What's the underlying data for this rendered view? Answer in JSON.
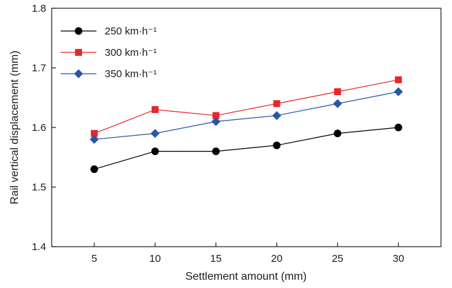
{
  "chart_data": {
    "type": "line",
    "title": "",
    "xlabel": "Settlement amount (mm)",
    "ylabel": "Rail vertical displacement (mm)",
    "x": [
      5,
      10,
      15,
      20,
      25,
      30
    ],
    "xlim": [
      1.5,
      33.5
    ],
    "ylim": [
      1.4,
      1.8
    ],
    "xticks": [
      5,
      10,
      15,
      20,
      25,
      30
    ],
    "yticks": [
      1.4,
      1.5,
      1.6,
      1.7,
      1.8
    ],
    "ytick_labels": [
      "1.4",
      "1.5",
      "1.6",
      "1.7",
      "1.8"
    ],
    "grid": false,
    "legend_position": "top-left",
    "series": [
      {
        "name": "250 km·h⁻¹",
        "color": "#000000",
        "marker": "circle",
        "values": [
          1.53,
          1.56,
          1.56,
          1.57,
          1.59,
          1.6
        ]
      },
      {
        "name": "300 km·h⁻¹",
        "color": "#e8262b",
        "marker": "square",
        "values": [
          1.59,
          1.63,
          1.62,
          1.64,
          1.66,
          1.68
        ]
      },
      {
        "name": "350 km·h⁻¹",
        "color": "#2a56a8",
        "marker": "diamond",
        "values": [
          1.58,
          1.59,
          1.61,
          1.62,
          1.64,
          1.66
        ]
      }
    ]
  }
}
